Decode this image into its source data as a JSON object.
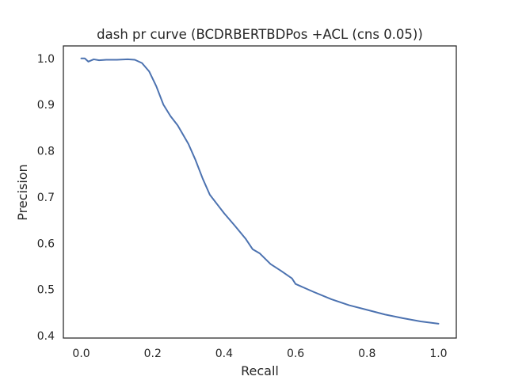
{
  "chart_data": {
    "type": "line",
    "title": "dash pr curve (BCDRBERTBDPos +ACL (cns 0.05))",
    "xlabel": "Recall",
    "ylabel": "Precision",
    "xlim": [
      -0.05,
      1.05
    ],
    "ylim": [
      0.395,
      1.027
    ],
    "x_ticks": [
      "0.0",
      "0.2",
      "0.4",
      "0.6",
      "0.8",
      "1.0"
    ],
    "y_ticks": [
      "0.4",
      "0.5",
      "0.6",
      "0.7",
      "0.8",
      "0.9",
      "1.0"
    ],
    "grid": false,
    "line_color": "#4c72b0",
    "series": [
      {
        "x": [
          0.0,
          0.01,
          0.02,
          0.035,
          0.05,
          0.07,
          0.1,
          0.13,
          0.15,
          0.17,
          0.19,
          0.21,
          0.23,
          0.25,
          0.27,
          0.3,
          0.32,
          0.34,
          0.36,
          0.38,
          0.4,
          0.43,
          0.46,
          0.48,
          0.5,
          0.53,
          0.56,
          0.59,
          0.6,
          0.65,
          0.7,
          0.75,
          0.8,
          0.85,
          0.9,
          0.95,
          1.0
        ],
        "y": [
          1.0,
          1.0,
          0.993,
          0.998,
          0.996,
          0.997,
          0.997,
          0.998,
          0.997,
          0.99,
          0.972,
          0.94,
          0.9,
          0.875,
          0.855,
          0.815,
          0.78,
          0.74,
          0.705,
          0.685,
          0.665,
          0.638,
          0.61,
          0.587,
          0.578,
          0.555,
          0.54,
          0.524,
          0.512,
          0.495,
          0.479,
          0.466,
          0.456,
          0.446,
          0.438,
          0.431,
          0.426
        ]
      }
    ]
  }
}
